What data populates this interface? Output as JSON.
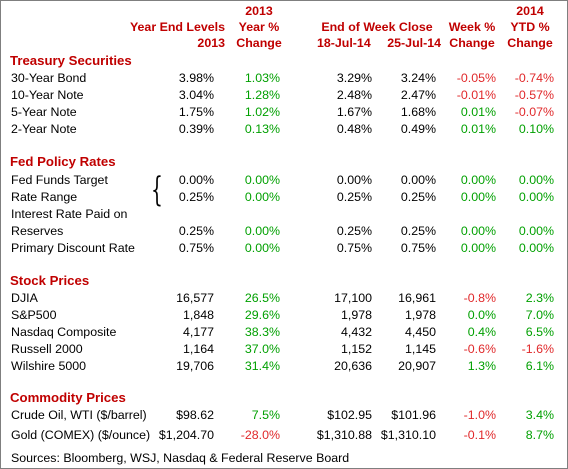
{
  "headers": {
    "year_end": [
      "Year End Levels",
      "2013"
    ],
    "year_change": [
      "2013",
      "Year %",
      "Change"
    ],
    "week_close": [
      "End of Week Close",
      "18-Jul-14",
      "25-Jul-14"
    ],
    "week_change": [
      "Week %",
      "Change"
    ],
    "ytd_change": [
      "2014",
      "YTD %",
      "Change"
    ]
  },
  "sections": {
    "treasury": {
      "title": "Treasury Securities",
      "rows": [
        {
          "label": "30-Year Bond",
          "v2013": "3.98%",
          "chg2013": "1.03%",
          "jul18": "3.29%",
          "jul25": "3.24%",
          "week": "-0.05%",
          "ytd": "-0.74%"
        },
        {
          "label": "10-Year Note",
          "v2013": "3.04%",
          "chg2013": "1.28%",
          "jul18": "2.48%",
          "jul25": "2.47%",
          "week": "-0.01%",
          "ytd": "-0.57%"
        },
        {
          "label": "5-Year Note",
          "v2013": "1.75%",
          "chg2013": "1.02%",
          "jul18": "1.67%",
          "jul25": "1.68%",
          "week": "0.01%",
          "ytd": "-0.07%"
        },
        {
          "label": "2-Year Note",
          "v2013": "0.39%",
          "chg2013": "0.13%",
          "jul18": "0.48%",
          "jul25": "0.49%",
          "week": "0.01%",
          "ytd": "0.10%"
        }
      ]
    },
    "fed": {
      "title": "Fed Policy Rates",
      "brace": "{",
      "rows": [
        {
          "label": "Fed Funds Target",
          "v2013": "0.00%",
          "chg2013": "0.00%",
          "jul18": "0.00%",
          "jul25": "0.00%",
          "week": "0.00%",
          "ytd": "0.00%"
        },
        {
          "label": "Rate Range",
          "v2013": "0.25%",
          "chg2013": "0.00%",
          "jul18": "0.25%",
          "jul25": "0.25%",
          "week": "0.00%",
          "ytd": "0.00%"
        },
        {
          "label": "Interest Rate Paid on"
        },
        {
          "label": "Reserves",
          "v2013": "0.25%",
          "chg2013": "0.00%",
          "jul18": "0.25%",
          "jul25": "0.25%",
          "week": "0.00%",
          "ytd": "0.00%"
        },
        {
          "label": "Primary Discount Rate",
          "v2013": "0.75%",
          "chg2013": "0.00%",
          "jul18": "0.75%",
          "jul25": "0.75%",
          "week": "0.00%",
          "ytd": "0.00%"
        }
      ]
    },
    "stocks": {
      "title": "Stock Prices",
      "rows": [
        {
          "label": "DJIA",
          "v2013": "16,577",
          "chg2013": "26.5%",
          "jul18": "17,100",
          "jul25": "16,961",
          "week": "-0.8%",
          "ytd": "2.3%"
        },
        {
          "label": "S&P500",
          "v2013": "1,848",
          "chg2013": "29.6%",
          "jul18": "1,978",
          "jul25": "1,978",
          "week": "0.0%",
          "ytd": "7.0%"
        },
        {
          "label": "Nasdaq Composite",
          "v2013": "4,177",
          "chg2013": "38.3%",
          "jul18": "4,432",
          "jul25": "4,450",
          "week": "0.4%",
          "ytd": "6.5%"
        },
        {
          "label": "Russell 2000",
          "v2013": "1,164",
          "chg2013": "37.0%",
          "jul18": "1,152",
          "jul25": "1,145",
          "week": "-0.6%",
          "ytd": "-1.6%"
        },
        {
          "label": "Wilshire 5000",
          "v2013": "19,706",
          "chg2013": "31.4%",
          "jul18": "20,636",
          "jul25": "20,907",
          "week": "1.3%",
          "ytd": "6.1%"
        }
      ]
    },
    "commodities": {
      "title": "Commodity Prices",
      "rows": [
        {
          "label": "Crude Oil, WTI ($/barrel)",
          "v2013": "$98.62",
          "chg2013": "7.5%",
          "jul18": "$102.95",
          "jul25": "$101.96",
          "week": "-1.0%",
          "ytd": "3.4%"
        },
        {
          "label": "Gold (COMEX) ($/ounce)",
          "v2013": "$1,204.70",
          "chg2013": "-28.0%",
          "jul18": "$1,310.88",
          "jul25": "$1,310.10",
          "week": "-0.1%",
          "ytd": "8.7%"
        }
      ]
    }
  },
  "colors": {
    "header": "#c00000",
    "positive": "#00a000",
    "negative": "#e0282a"
  },
  "source": "Sources: Bloomberg, WSJ, Nasdaq & Federal Reserve Board"
}
